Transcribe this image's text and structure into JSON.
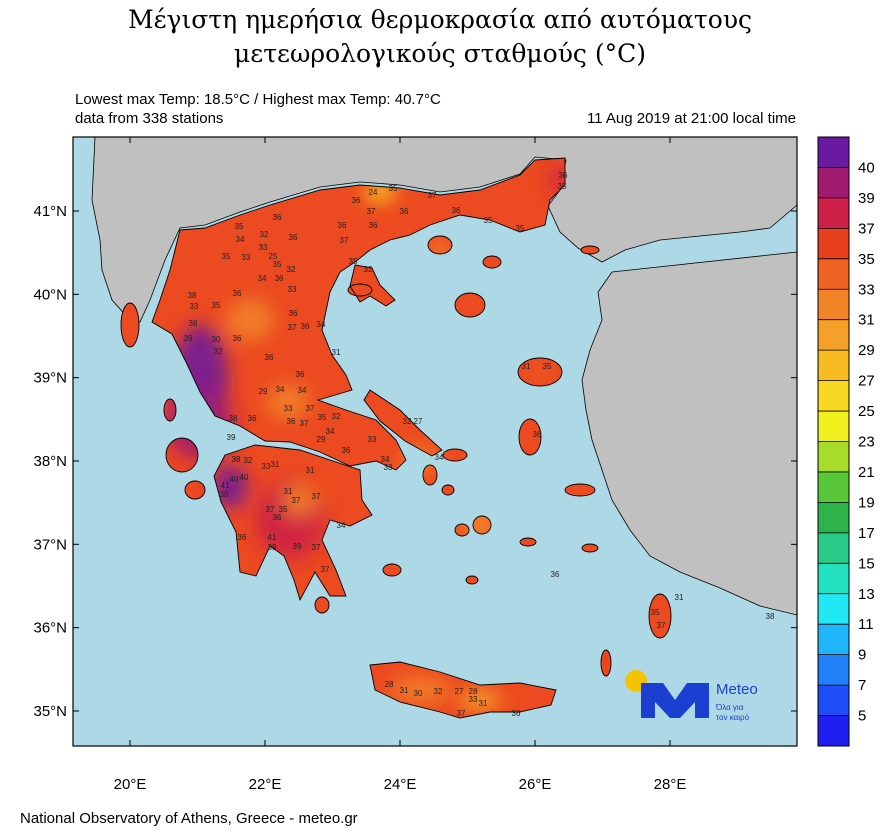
{
  "header": {
    "title": [
      "Μέγιστη ημερήσια θερμοκρασία από αυτόματους",
      "μετεωρολογικούς σταθμούς (°C)"
    ],
    "stats": "Lowest max Temp: 18.5°C / Highest max Temp: 40.7°C",
    "stations_count": "data from 338 stations",
    "date": "11 Aug 2019 at 21:00 local time"
  },
  "map": {
    "lat_ticks": [
      {
        "value": 41,
        "label": "41°N"
      },
      {
        "value": 40,
        "label": "40°N"
      },
      {
        "value": 39,
        "label": "39°N"
      },
      {
        "value": 38,
        "label": "38°N"
      },
      {
        "value": 37,
        "label": "37°N"
      },
      {
        "value": 36,
        "label": "36°N"
      },
      {
        "value": 35,
        "label": "35°N"
      }
    ],
    "lon_ticks": [
      {
        "value": 20,
        "label": "20°E"
      },
      {
        "value": 22,
        "label": "22°E"
      },
      {
        "value": 24,
        "label": "24°E"
      },
      {
        "value": 26,
        "label": "26°E"
      },
      {
        "value": 28,
        "label": "28°E"
      }
    ],
    "stations": [
      35,
      24,
      36,
      37,
      36,
      37,
      36,
      35,
      35,
      36,
      35,
      36,
      36,
      37,
      36,
      35,
      34,
      32,
      36,
      33,
      35,
      33,
      25,
      35,
      32,
      34,
      36,
      33,
      35,
      32,
      36,
      38,
      33,
      35,
      38,
      36,
      37,
      36,
      34,
      39,
      30,
      36,
      32,
      36,
      31,
      31,
      35,
      36,
      29,
      34,
      34,
      37,
      33,
      38,
      36,
      36,
      37,
      35,
      32,
      34,
      29,
      39,
      33,
      32,
      27,
      34,
      36,
      34,
      33,
      38,
      32,
      33,
      31,
      31,
      40,
      40,
      41,
      38,
      31,
      37,
      37,
      37,
      35,
      36,
      34,
      36,
      41,
      39,
      39,
      37,
      37,
      36,
      36,
      35,
      37,
      31,
      38,
      28,
      31,
      30,
      32,
      27,
      28,
      33,
      31,
      37,
      36
    ],
    "land_color": "#ec4a20",
    "colorbar": {
      "levels": [
        5,
        7,
        9,
        11,
        13,
        15,
        17,
        19,
        21,
        23,
        25,
        27,
        29,
        31,
        33,
        35,
        37,
        39,
        40
      ],
      "colors": [
        "#1e1ef0",
        "#1e4ef5",
        "#2080f8",
        "#20b4f8",
        "#20e8f5",
        "#22e0c0",
        "#28cc88",
        "#2cb44a",
        "#58c83a",
        "#a8dc2a",
        "#f0f01e",
        "#f8d820",
        "#f8bc22",
        "#f5a028",
        "#f28428",
        "#ee6224",
        "#e8401f",
        "#cc2048",
        "#a01a70",
        "#6a1aa0"
      ]
    }
  },
  "logo": {
    "name": "Meteo",
    "tagline": [
      "Όλα για",
      "τον καιρό"
    ]
  },
  "footer": "National Observatory of Athens, Greece - meteo.gr"
}
